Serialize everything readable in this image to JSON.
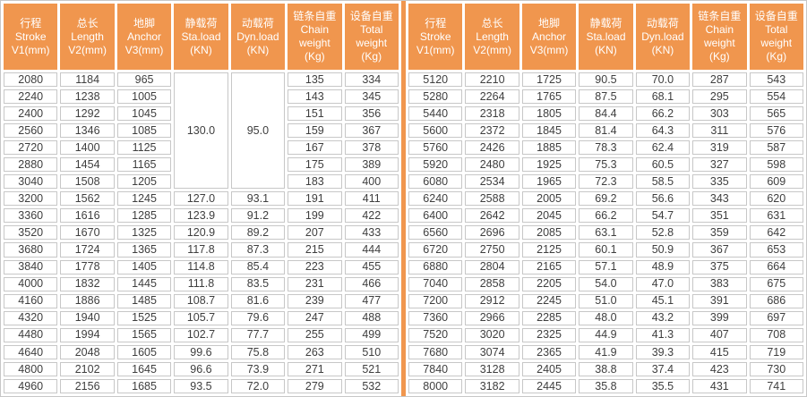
{
  "colors": {
    "accent": "#F0964E",
    "border": "#C7C7C7",
    "text": "#3E3E3E",
    "header_text": "#FFFFFF"
  },
  "table": {
    "columns": [
      {
        "lines": [
          "行程",
          "Stroke",
          "V1(mm)"
        ]
      },
      {
        "lines": [
          "总长",
          "Length",
          "V2(mm)"
        ]
      },
      {
        "lines": [
          "地脚",
          "Anchor",
          "V3(mm)"
        ]
      },
      {
        "lines": [
          "静载荷",
          "Sta.load",
          "(KN)"
        ]
      },
      {
        "lines": [
          "动载荷",
          "Dyn.load",
          "(KN)"
        ]
      },
      {
        "lines": [
          "链条自重",
          "Chain",
          "weight",
          "(Kg)"
        ]
      },
      {
        "lines": [
          "设备自重",
          "Total",
          "weight",
          "(Kg)"
        ]
      }
    ],
    "left": {
      "merges": [
        {
          "row": 0,
          "col": 3,
          "rowspan": 7,
          "value": "130.0"
        },
        {
          "row": 0,
          "col": 4,
          "rowspan": 7,
          "value": "95.0"
        }
      ],
      "rows": [
        [
          "2080",
          "1184",
          "965",
          null,
          null,
          "135",
          "334"
        ],
        [
          "2240",
          "1238",
          "1005",
          null,
          null,
          "143",
          "345"
        ],
        [
          "2400",
          "1292",
          "1045",
          null,
          null,
          "151",
          "356"
        ],
        [
          "2560",
          "1346",
          "1085",
          null,
          null,
          "159",
          "367"
        ],
        [
          "2720",
          "1400",
          "1125",
          null,
          null,
          "167",
          "378"
        ],
        [
          "2880",
          "1454",
          "1165",
          null,
          null,
          "175",
          "389"
        ],
        [
          "3040",
          "1508",
          "1205",
          null,
          null,
          "183",
          "400"
        ],
        [
          "3200",
          "1562",
          "1245",
          "127.0",
          "93.1",
          "191",
          "411"
        ],
        [
          "3360",
          "1616",
          "1285",
          "123.9",
          "91.2",
          "199",
          "422"
        ],
        [
          "3520",
          "1670",
          "1325",
          "120.9",
          "89.2",
          "207",
          "433"
        ],
        [
          "3680",
          "1724",
          "1365",
          "117.8",
          "87.3",
          "215",
          "444"
        ],
        [
          "3840",
          "1778",
          "1405",
          "114.8",
          "85.4",
          "223",
          "455"
        ],
        [
          "4000",
          "1832",
          "1445",
          "111.8",
          "83.5",
          "231",
          "466"
        ],
        [
          "4160",
          "1886",
          "1485",
          "108.7",
          "81.6",
          "239",
          "477"
        ],
        [
          "4320",
          "1940",
          "1525",
          "105.7",
          "79.6",
          "247",
          "488"
        ],
        [
          "4480",
          "1994",
          "1565",
          "102.7",
          "77.7",
          "255",
          "499"
        ],
        [
          "4640",
          "2048",
          "1605",
          "99.6",
          "75.8",
          "263",
          "510"
        ],
        [
          "4800",
          "2102",
          "1645",
          "96.6",
          "73.9",
          "271",
          "521"
        ],
        [
          "4960",
          "2156",
          "1685",
          "93.5",
          "72.0",
          "279",
          "532"
        ]
      ]
    },
    "right": {
      "merges": [],
      "rows": [
        [
          "5120",
          "2210",
          "1725",
          "90.5",
          "70.0",
          "287",
          "543"
        ],
        [
          "5280",
          "2264",
          "1765",
          "87.5",
          "68.1",
          "295",
          "554"
        ],
        [
          "5440",
          "2318",
          "1805",
          "84.4",
          "66.2",
          "303",
          "565"
        ],
        [
          "5600",
          "2372",
          "1845",
          "81.4",
          "64.3",
          "311",
          "576"
        ],
        [
          "5760",
          "2426",
          "1885",
          "78.3",
          "62.4",
          "319",
          "587"
        ],
        [
          "5920",
          "2480",
          "1925",
          "75.3",
          "60.5",
          "327",
          "598"
        ],
        [
          "6080",
          "2534",
          "1965",
          "72.3",
          "58.5",
          "335",
          "609"
        ],
        [
          "6240",
          "2588",
          "2005",
          "69.2",
          "56.6",
          "343",
          "620"
        ],
        [
          "6400",
          "2642",
          "2045",
          "66.2",
          "54.7",
          "351",
          "631"
        ],
        [
          "6560",
          "2696",
          "2085",
          "63.1",
          "52.8",
          "359",
          "642"
        ],
        [
          "6720",
          "2750",
          "2125",
          "60.1",
          "50.9",
          "367",
          "653"
        ],
        [
          "6880",
          "2804",
          "2165",
          "57.1",
          "48.9",
          "375",
          "664"
        ],
        [
          "7040",
          "2858",
          "2205",
          "54.0",
          "47.0",
          "383",
          "675"
        ],
        [
          "7200",
          "2912",
          "2245",
          "51.0",
          "45.1",
          "391",
          "686"
        ],
        [
          "7360",
          "2966",
          "2285",
          "48.0",
          "43.2",
          "399",
          "697"
        ],
        [
          "7520",
          "3020",
          "2325",
          "44.9",
          "41.3",
          "407",
          "708"
        ],
        [
          "7680",
          "3074",
          "2365",
          "41.9",
          "39.3",
          "415",
          "719"
        ],
        [
          "7840",
          "3128",
          "2405",
          "38.8",
          "37.4",
          "423",
          "730"
        ],
        [
          "8000",
          "3182",
          "2445",
          "35.8",
          "35.5",
          "431",
          "741"
        ]
      ]
    }
  }
}
